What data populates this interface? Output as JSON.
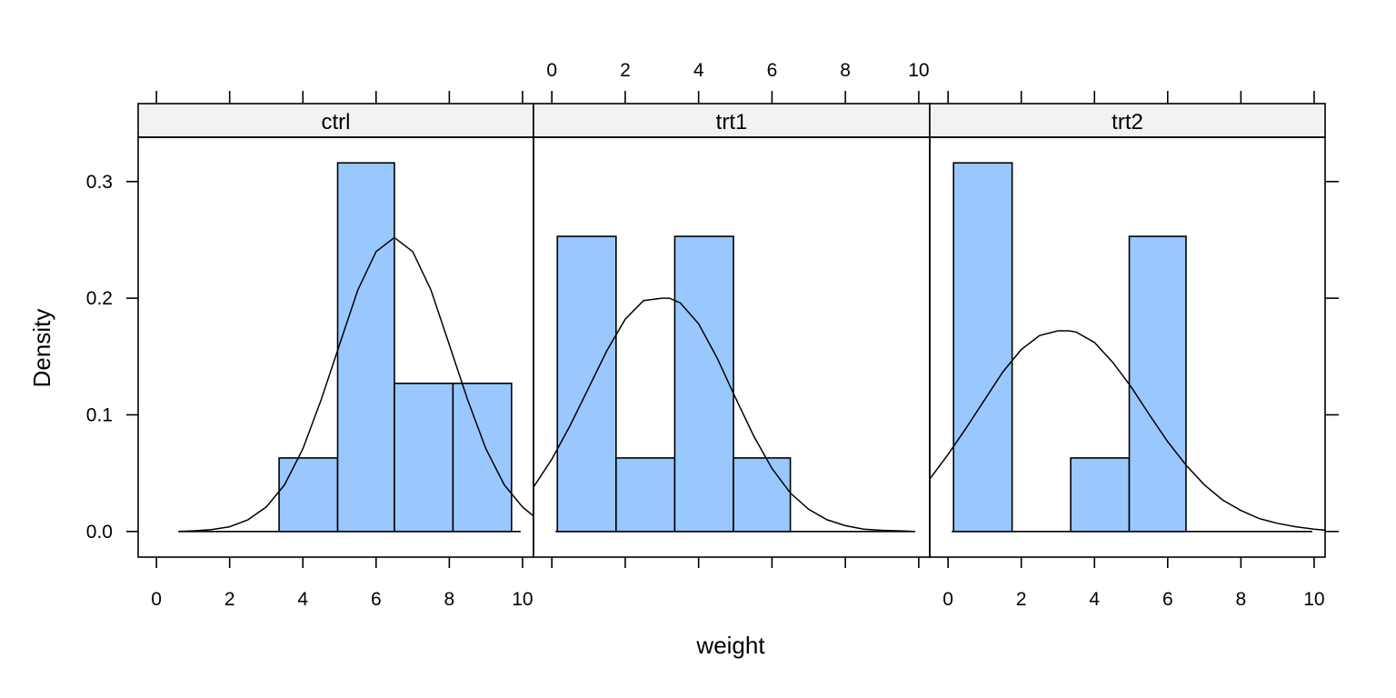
{
  "chart_data": {
    "type": "histogram",
    "layout": "lattice 1x3 panels with density overlay",
    "xlabel": "weight",
    "ylabel": "Density",
    "xlim": [
      -0.5,
      10.3
    ],
    "ylim": [
      -0.022,
      0.338
    ],
    "x_ticks": [
      0,
      2,
      4,
      6,
      8,
      10
    ],
    "y_ticks": [
      0.0,
      0.1,
      0.2,
      0.3
    ],
    "y_tick_labels": [
      "0.0",
      "0.1",
      "0.2",
      "0.3"
    ],
    "bar_color": "#99c8ff",
    "strip_color": "#f2f2f2",
    "panels": [
      {
        "name": "ctrl",
        "x_axis": "bottom",
        "bars": [
          {
            "x0": 3.35,
            "x1": 4.95,
            "density": 0.063
          },
          {
            "x0": 4.95,
            "x1": 6.5,
            "density": 0.316
          },
          {
            "x0": 6.5,
            "x1": 8.1,
            "density": 0.127
          },
          {
            "x0": 8.1,
            "x1": 9.7,
            "density": 0.127
          }
        ],
        "density_curve": {
          "x": [
            0.6,
            1.0,
            1.5,
            2.0,
            2.5,
            3.0,
            3.5,
            4.0,
            4.5,
            5.0,
            5.5,
            6.0,
            6.5,
            7.0,
            7.5,
            8.0,
            8.5,
            9.0,
            9.5,
            10.0,
            10.35
          ],
          "y": [
            0.0,
            0.0005,
            0.0015,
            0.004,
            0.01,
            0.021,
            0.04,
            0.071,
            0.113,
            0.16,
            0.207,
            0.24,
            0.252,
            0.24,
            0.207,
            0.16,
            0.113,
            0.071,
            0.04,
            0.021,
            0.012
          ]
        }
      },
      {
        "name": "trt1",
        "x_axis": "top",
        "bars": [
          {
            "x0": 0.15,
            "x1": 1.75,
            "density": 0.253
          },
          {
            "x0": 1.75,
            "x1": 3.35,
            "density": 0.063
          },
          {
            "x0": 3.35,
            "x1": 4.95,
            "density": 0.253
          },
          {
            "x0": 4.95,
            "x1": 6.5,
            "density": 0.063
          }
        ],
        "density_curve": {
          "x": [
            -0.5,
            0.0,
            0.5,
            1.0,
            1.5,
            2.0,
            2.5,
            3.0,
            3.2,
            3.5,
            4.0,
            4.5,
            5.0,
            5.5,
            6.0,
            6.5,
            7.0,
            7.5,
            8.0,
            8.5,
            9.0,
            9.5,
            9.9
          ],
          "y": [
            0.038,
            0.062,
            0.091,
            0.123,
            0.155,
            0.182,
            0.198,
            0.2,
            0.2,
            0.196,
            0.178,
            0.149,
            0.115,
            0.082,
            0.054,
            0.033,
            0.019,
            0.01,
            0.005,
            0.002,
            0.001,
            0.0005,
            0.0
          ]
        }
      },
      {
        "name": "trt2",
        "x_axis": "bottom",
        "bars": [
          {
            "x0": 0.15,
            "x1": 1.75,
            "density": 0.316
          },
          {
            "x0": 3.35,
            "x1": 4.95,
            "density": 0.063
          },
          {
            "x0": 4.95,
            "x1": 6.5,
            "density": 0.253
          }
        ],
        "density_curve": {
          "x": [
            -0.5,
            0.0,
            0.5,
            1.0,
            1.5,
            2.0,
            2.5,
            3.0,
            3.3,
            3.5,
            4.0,
            4.5,
            5.0,
            5.5,
            6.0,
            6.5,
            7.0,
            7.5,
            8.0,
            8.5,
            9.0,
            9.5,
            10.0,
            10.35
          ],
          "y": [
            0.045,
            0.066,
            0.089,
            0.113,
            0.137,
            0.156,
            0.168,
            0.172,
            0.172,
            0.171,
            0.162,
            0.145,
            0.124,
            0.1,
            0.077,
            0.057,
            0.04,
            0.027,
            0.018,
            0.011,
            0.007,
            0.004,
            0.002,
            0.001
          ]
        }
      }
    ]
  }
}
